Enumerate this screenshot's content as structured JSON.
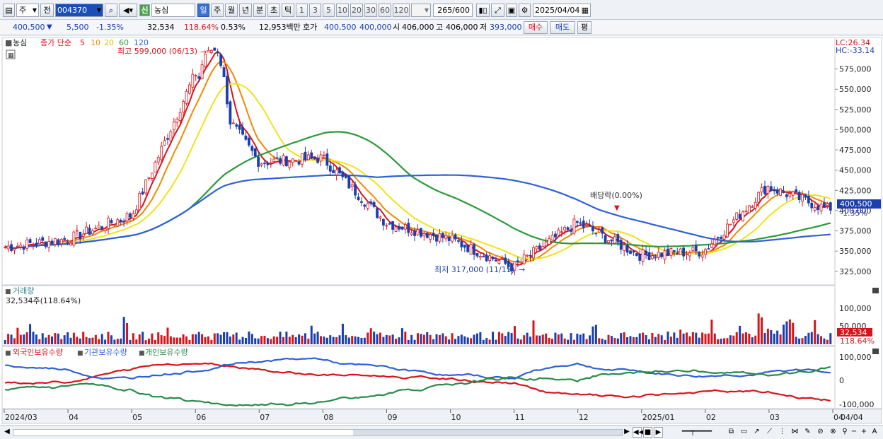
{
  "toolbar": {
    "type_label": "주",
    "prev_label": "전",
    "stock_code": "004370",
    "market_badge": "신",
    "stock_name": "농심",
    "periods": [
      "일",
      "주",
      "월",
      "년",
      "분",
      "초",
      "틱"
    ],
    "active_period": "일",
    "intervals": [
      "1",
      "3",
      "5",
      "10",
      "20",
      "30",
      "60",
      "120"
    ],
    "count_value": "265",
    "count_total": "/600",
    "date_value": "2025/04/04"
  },
  "quote": {
    "price": "400,500",
    "arrow": "▼",
    "change": "5,500",
    "change_pct": "-1.35%",
    "volume": "32,534",
    "volume_pct": "118.64%",
    "turnover": "0.53%",
    "amount": "12,953백만",
    "ask_label": "호가",
    "ask": "400,500",
    "bid": "400,000",
    "open_label": "시",
    "open": "406,000",
    "high_label": "고",
    "high": "406,000",
    "low_label": "저",
    "low": "393,000",
    "buy_label": "매수",
    "sell_label": "매도",
    "eval_label": "평"
  },
  "chart": {
    "legend_name": "농심",
    "legend_ma_title": "종가 단순",
    "ma_periods": [
      "5",
      "10",
      "20",
      "60",
      "120"
    ],
    "ma_colors": [
      "#d8141a",
      "#f08a00",
      "#f2e21a",
      "#2a9a3a",
      "#3060d8"
    ],
    "lc_label": "LC:26.34",
    "hc_label": "HC:-33.14",
    "high_note": "최고 599,000 (06/13)",
    "low_note": "최저 317,000 (11/15)",
    "dividend_note": "배당락(0.00%)",
    "price_ticks": [
      "575,000",
      "550,000",
      "525,000",
      "500,000",
      "475,000",
      "450,000",
      "425,000",
      "400,000",
      "375,000",
      "350,000",
      "325,000"
    ],
    "current_price_tag": "400,500",
    "current_pct_tag": "-1.35%",
    "volume_title": "거래량",
    "volume_value": "32,534주(118.64%)",
    "volume_ticks": [
      "100,000",
      "50,000"
    ],
    "volume_tag": "32,534",
    "volume_pct_tag": "118.64%",
    "holdings_legend": [
      "외국인보유수량",
      "기관보유수량",
      "개인보유수량"
    ],
    "holdings_colors": [
      "#d8141a",
      "#3060d8",
      "#2a8a4a"
    ],
    "holdings_ticks": [
      "100,000",
      "0",
      "-100,000"
    ],
    "x_labels": [
      "2024/03",
      "04",
      "05",
      "06",
      "07",
      "08",
      "09",
      "10",
      "11",
      "12",
      "2025/01",
      "02",
      "03",
      "04"
    ],
    "x_right_label": "04/04"
  },
  "chart_data": {
    "type": "candlestick",
    "title": "농심 004370",
    "price_range": [
      310000,
      600000
    ],
    "annotations": [
      {
        "label": "최고 599,000 (06/13)",
        "value": 599000
      },
      {
        "label": "최저 317,000 (11/15)",
        "value": 317000
      },
      {
        "label": "배당락(0.00%)"
      }
    ],
    "x_ticks": [
      "2024/03",
      "04",
      "05",
      "06",
      "07",
      "08",
      "09",
      "10",
      "11",
      "12",
      "2025/01",
      "02",
      "03",
      "04"
    ],
    "close_path": [
      [
        "2024/03",
        355000
      ],
      [
        "04",
        365000
      ],
      [
        "05",
        395000
      ],
      [
        "06",
        570000
      ],
      [
        "07",
        460000
      ],
      [
        "08",
        465000
      ],
      [
        "09",
        385000
      ],
      [
        "10",
        365000
      ],
      [
        "11",
        330000
      ],
      [
        "12",
        385000
      ],
      [
        "2025/01",
        345000
      ],
      [
        "02",
        350000
      ],
      [
        "03",
        430000
      ],
      [
        "04",
        400500
      ]
    ],
    "last_close": 400500,
    "volume_last": 32534,
    "volume_ticks": [
      50000,
      100000
    ],
    "holdings_ticks": [
      -100000,
      0,
      100000
    ]
  }
}
